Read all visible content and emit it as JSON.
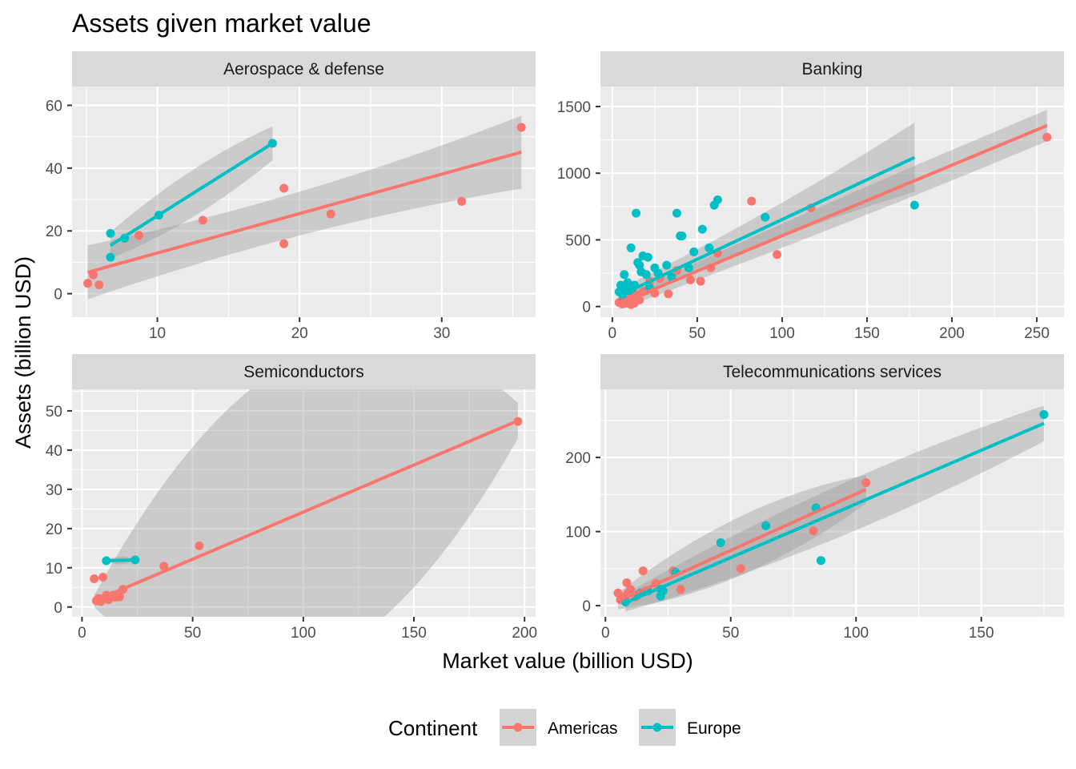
{
  "chart_data": {
    "type": "scatter",
    "title": "Assets given market value",
    "xlabel": "Market value (billion USD)",
    "ylabel": "Assets (billion USD)",
    "legend": {
      "title": "Continent",
      "position": "bottom",
      "entries": [
        {
          "name": "Americas",
          "color": "#F8766D"
        },
        {
          "name": "Europe",
          "color": "#00BFC4"
        }
      ]
    },
    "grid": true,
    "trend": "linear fit with 95% confidence band",
    "panels": [
      {
        "name": "Aerospace & defense",
        "xlim": [
          4.0,
          36.6
        ],
        "ylim": [
          -7.5,
          66.0
        ],
        "xticks": [
          10,
          20,
          30
        ],
        "yticks": [
          0,
          20,
          40,
          60
        ],
        "series": [
          {
            "name": "Americas",
            "points": [
              [
                5.1,
                3.3
              ],
              [
                5.5,
                6.0
              ],
              [
                5.9,
                2.8
              ],
              [
                8.7,
                18.6
              ],
              [
                13.2,
                23.4
              ],
              [
                18.9,
                15.9
              ],
              [
                18.9,
                33.6
              ],
              [
                22.2,
                25.4
              ],
              [
                31.4,
                29.4
              ],
              [
                35.6,
                53.0
              ]
            ],
            "fit": {
              "x_range": [
                5.1,
                35.6
              ],
              "y_range": [
                6.8,
                45.1
              ],
              "se_low": [
                -1.8,
                33.5
              ],
              "se_high": [
                15.4,
                56.7
              ],
              "se_mid": [
                14.0,
                28.0
              ]
            }
          },
          {
            "name": "Europe",
            "points": [
              [
                6.7,
                19.2
              ],
              [
                6.7,
                11.6
              ],
              [
                7.7,
                17.7
              ],
              [
                10.1,
                25.0
              ],
              [
                18.1,
                47.9
              ]
            ],
            "fit": {
              "x_range": [
                6.7,
                18.1
              ],
              "y_range": [
                15.4,
                47.9
              ],
              "se_low": [
                11.2,
                42.5
              ],
              "se_high": [
                19.6,
                53.3
              ],
              "se_mid": [
                13.0,
                28.0
              ]
            }
          }
        ]
      },
      {
        "name": "Banking",
        "xlim": [
          -7.0,
          266.0
        ],
        "ylim": [
          -80.0,
          1650.0
        ],
        "xticks": [
          0,
          50,
          100,
          150,
          200,
          250
        ],
        "yticks": [
          0,
          500,
          1000,
          1500
        ],
        "series": [
          {
            "name": "Americas",
            "points": [
              [
                4,
                30
              ],
              [
                5,
                40
              ],
              [
                6,
                20
              ],
              [
                7,
                55
              ],
              [
                8,
                25
              ],
              [
                9,
                35
              ],
              [
                10,
                60
              ],
              [
                11,
                15
              ],
              [
                12,
                45
              ],
              [
                13,
                25
              ],
              [
                14,
                90
              ],
              [
                15,
                70
              ],
              [
                16,
                50
              ],
              [
                18,
                110
              ],
              [
                20,
                120
              ],
              [
                22,
                190
              ],
              [
                25,
                100
              ],
              [
                28,
                210
              ],
              [
                33,
                95
              ],
              [
                38,
                270
              ],
              [
                46,
                200
              ],
              [
                52,
                190
              ],
              [
                58,
                290
              ],
              [
                62,
                400
              ],
              [
                82,
                790
              ],
              [
                97,
                390
              ],
              [
                117,
                740
              ],
              [
                256,
                1270
              ]
            ],
            "fit": {
              "x_range": [
                4,
                256
              ],
              "y_range": [
                22,
                1357
              ],
              "se_low": [
                -20,
                1240
              ],
              "se_high": [
                64,
                1474
              ],
              "se_mid": [
                60,
                260
              ]
            }
          },
          {
            "name": "Europe",
            "points": [
              [
                4,
                110
              ],
              [
                5,
                160
              ],
              [
                6,
                90
              ],
              [
                7,
                240
              ],
              [
                8,
                140
              ],
              [
                9,
                180
              ],
              [
                10,
                120
              ],
              [
                11,
                440
              ],
              [
                12,
                140
              ],
              [
                13,
                160
              ],
              [
                14,
                700
              ],
              [
                15,
                330
              ],
              [
                16,
                310
              ],
              [
                17,
                260
              ],
              [
                18,
                380
              ],
              [
                20,
                240
              ],
              [
                21,
                370
              ],
              [
                22,
                140
              ],
              [
                25,
                290
              ],
              [
                27,
                250
              ],
              [
                32,
                310
              ],
              [
                35,
                220
              ],
              [
                38,
                700
              ],
              [
                40,
                530
              ],
              [
                41,
                530
              ],
              [
                45,
                290
              ],
              [
                48,
                410
              ],
              [
                53,
                580
              ],
              [
                57,
                440
              ],
              [
                60,
                760
              ],
              [
                62,
                800
              ],
              [
                90,
                670
              ],
              [
                178,
                760
              ]
            ],
            "fit": {
              "x_range": [
                4,
                178
              ],
              "y_range": [
                80,
                1118
              ],
              "se_low": [
                30,
                860
              ],
              "se_high": [
                130,
                1380
              ],
              "se_mid": [
                40,
                270
              ]
            }
          }
        ]
      },
      {
        "name": "Semiconductors",
        "xlim": [
          -4.5,
          205.0
        ],
        "ylim": [
          -2.5,
          55.5
        ],
        "xticks": [
          0,
          50,
          100,
          150,
          200
        ],
        "yticks": [
          0,
          10,
          20,
          30,
          40,
          50
        ],
        "series": [
          {
            "name": "Americas",
            "points": [
              [
                5.5,
                7.2
              ],
              [
                6.5,
                1.6
              ],
              [
                7.5,
                2.2
              ],
              [
                8.5,
                1.4
              ],
              [
                9.5,
                7.6
              ],
              [
                10,
                2.2
              ],
              [
                11,
                3.0
              ],
              [
                12,
                1.9
              ],
              [
                13,
                2.6
              ],
              [
                14,
                3.0
              ],
              [
                15,
                2.5
              ],
              [
                17,
                2.6
              ],
              [
                18.5,
                4.5
              ],
              [
                37,
                10.4
              ],
              [
                53,
                15.6
              ],
              [
                197,
                47.3
              ]
            ],
            "fit": {
              "x_range": [
                5.5,
                197
              ],
              "y_range": [
                1.5,
                47.5
              ],
              "se_low": [
                0.0,
                43.0
              ],
              "se_high": [
                3.0,
                52.0
              ],
              "se_mid": [
                20.0,
                100.0
              ]
            }
          },
          {
            "name": "Europe",
            "points": [
              [
                11,
                11.8
              ],
              [
                24,
                12.0
              ]
            ],
            "fit": {
              "x_range": [
                11,
                24
              ],
              "y_range": [
                11.8,
                12.0
              ],
              "se_low": [
                11.8,
                12.0
              ],
              "se_high": [
                11.8,
                12.0
              ],
              "se_mid": [
                15.0,
                17.0
              ]
            }
          }
        ]
      },
      {
        "name": "Telecommunications services",
        "xlim": [
          -2.0,
          183.0
        ],
        "ylim": [
          -15.0,
          292.0
        ],
        "xticks": [
          0,
          50,
          100,
          150
        ],
        "yticks": [
          0,
          100,
          200
        ],
        "series": [
          {
            "name": "Americas",
            "points": [
              [
                5,
                17
              ],
              [
                6,
                8
              ],
              [
                7,
                11
              ],
              [
                8,
                13
              ],
              [
                8.5,
                31
              ],
              [
                9,
                17
              ],
              [
                10,
                22
              ],
              [
                12,
                12
              ],
              [
                15,
                47
              ],
              [
                16,
                20
              ],
              [
                20,
                30
              ],
              [
                27,
                47
              ],
              [
                30,
                22
              ],
              [
                54,
                50
              ],
              [
                83,
                101
              ],
              [
                104,
                166
              ]
            ],
            "fit": {
              "x_range": [
                5,
                104
              ],
              "y_range": [
                6,
                157
              ],
              "se_low": [
                -5,
                138
              ],
              "se_high": [
                17,
                176
              ],
              "se_mid": [
                30,
                110
              ]
            }
          },
          {
            "name": "Europe",
            "points": [
              [
                8,
                5
              ],
              [
                13,
                15
              ],
              [
                14,
                17
              ],
              [
                17,
                20
              ],
              [
                22,
                22
              ],
              [
                22,
                13
              ],
              [
                23,
                20
              ],
              [
                28,
                45
              ],
              [
                46,
                85
              ],
              [
                64,
                108
              ],
              [
                84,
                132
              ],
              [
                86,
                61
              ],
              [
                175,
                258
              ]
            ],
            "fit": {
              "x_range": [
                8,
                175
              ],
              "y_range": [
                4,
                246
              ],
              "se_low": [
                -8,
                222
              ],
              "se_high": [
                16,
                270
              ],
              "se_mid": [
                40,
                110
              ]
            }
          }
        ]
      }
    ]
  }
}
